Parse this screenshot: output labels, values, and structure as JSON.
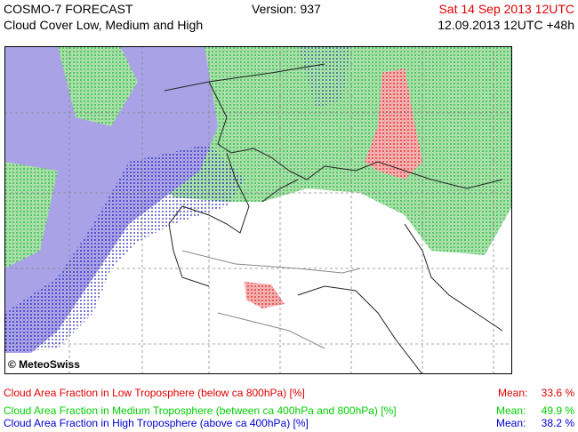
{
  "header": {
    "title": "COSMO-7 FORECAST",
    "subtitle": "Cloud Cover Low, Medium and High",
    "version": "Version: 937",
    "valid_time": "Sat 14 Sep 2013 12UTC",
    "run_time": "12.09.2013 12UTC +48h"
  },
  "map": {
    "copyright": "© MeteoSwiss"
  },
  "legend": [
    {
      "label": "Cloud Area Fraction in Low Troposphere (below ca 800hPa) [%]",
      "mean_label": "Mean:",
      "mean": "33.6 %",
      "color": "#e00000"
    },
    {
      "label": "Cloud Area Fraction in Medium Troposphere (between ca 400hPa and 800hPa) [%]",
      "mean_label": "Mean:",
      "mean": "49.9 %",
      "color": "#00d000"
    },
    {
      "label": "Cloud Area Fraction in High Troposphere (above ca 400hPa) [%]",
      "mean_label": "Mean:",
      "mean": "38.2 %",
      "color": "#0000d0"
    }
  ]
}
